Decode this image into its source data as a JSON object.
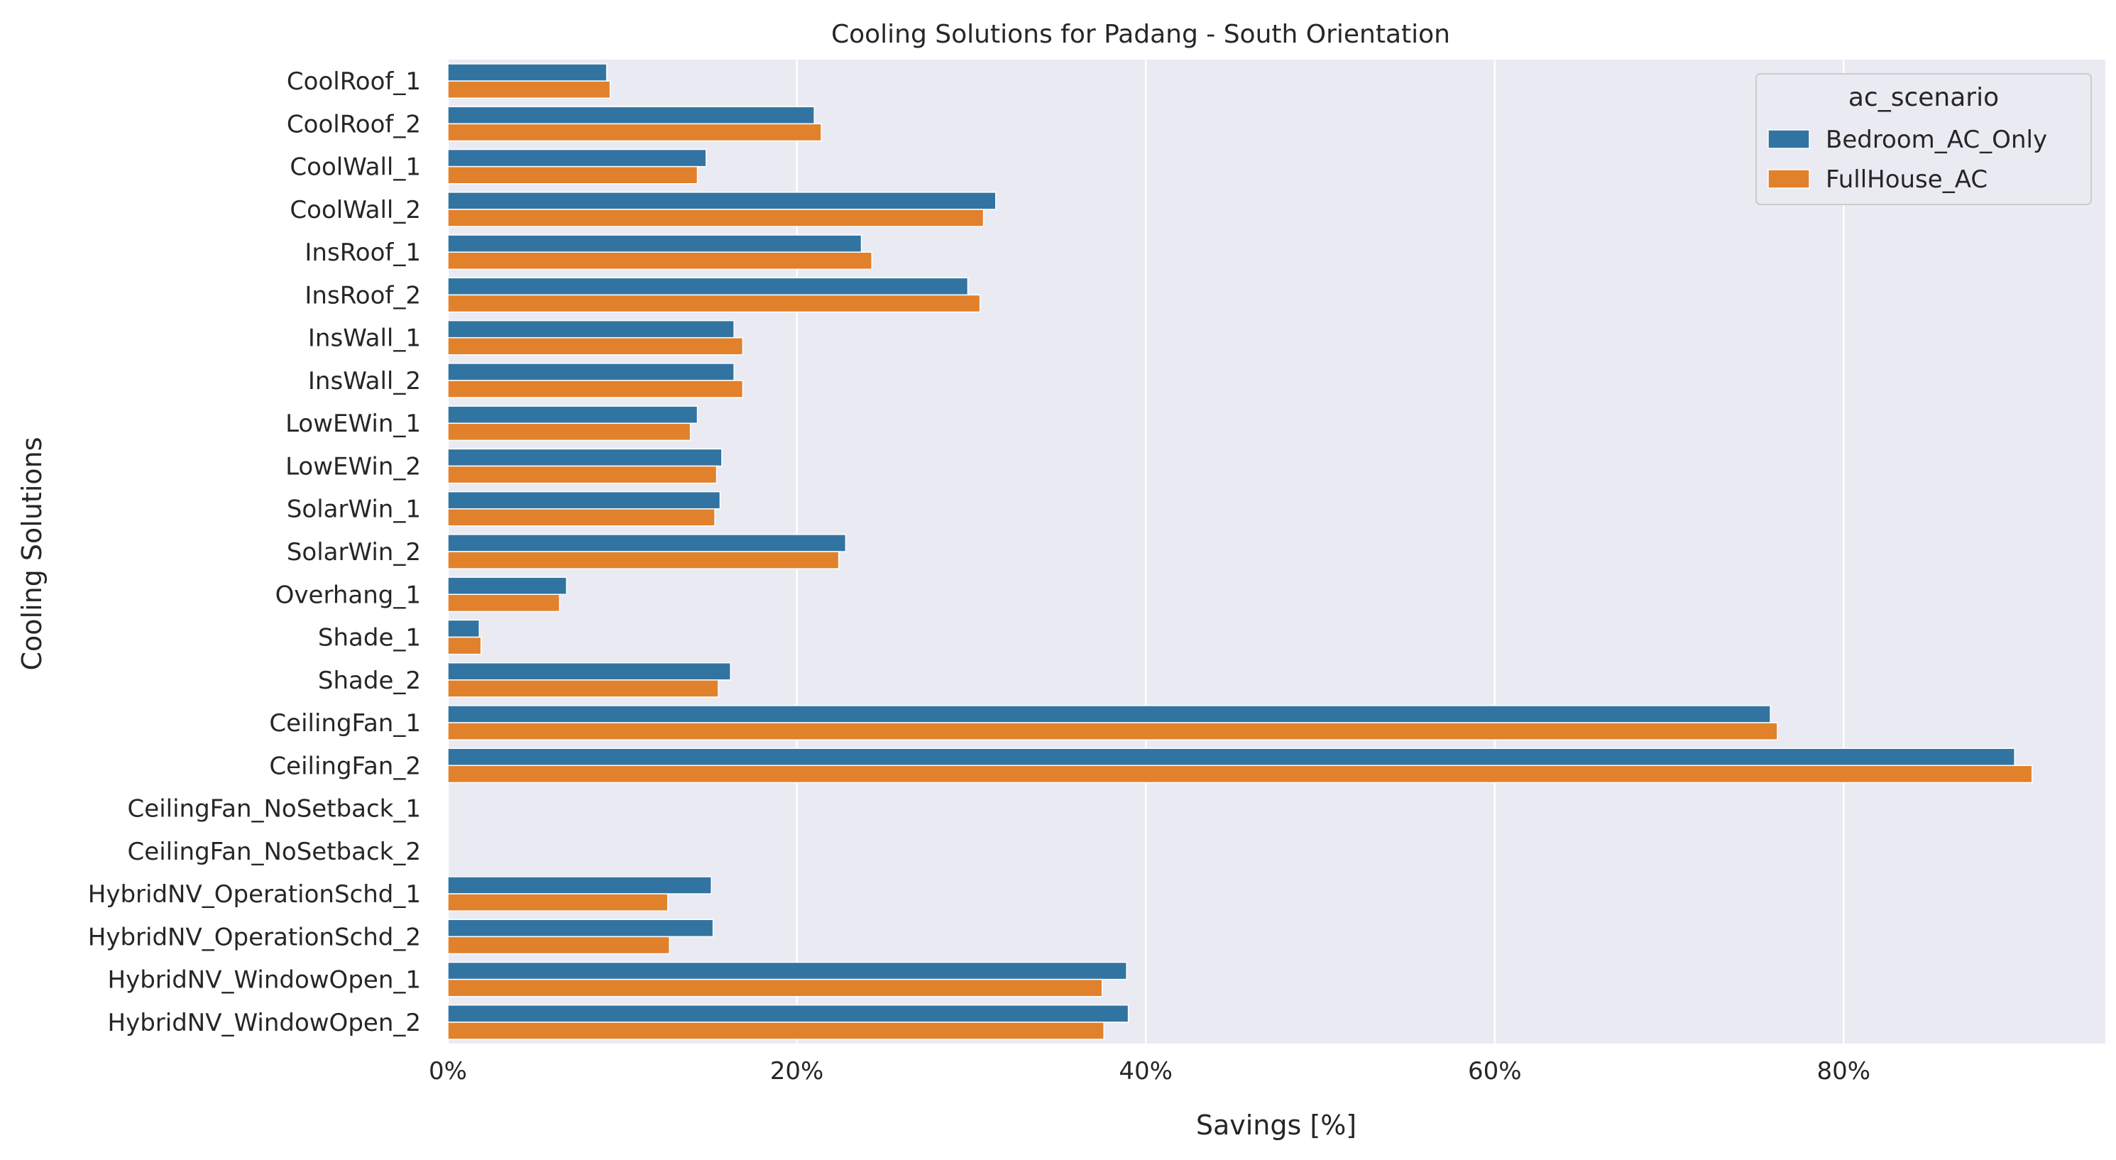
{
  "chart_data": {
    "type": "bar",
    "orientation": "horizontal",
    "title": "Cooling Solutions for Padang - South Orientation",
    "xlabel": "Savings [%]",
    "ylabel": "Cooling Solutions",
    "xlim": [
      0,
      95
    ],
    "xticks": [
      0,
      20,
      40,
      60,
      80
    ],
    "xtick_labels": [
      "0%",
      "20%",
      "40%",
      "60%",
      "80%"
    ],
    "grid": true,
    "legend": {
      "title": "ac_scenario",
      "placement": "top-right"
    },
    "categories": [
      "CoolRoof_1",
      "CoolRoof_2",
      "CoolWall_1",
      "CoolWall_2",
      "InsRoof_1",
      "InsRoof_2",
      "InsWall_1",
      "InsWall_2",
      "LowEWin_1",
      "LowEWin_2",
      "SolarWin_1",
      "SolarWin_2",
      "Overhang_1",
      "Shade_1",
      "Shade_2",
      "CeilingFan_1",
      "CeilingFan_2",
      "CeilingFan_NoSetback_1",
      "CeilingFan_NoSetback_2",
      "HybridNV_OperationSchd_1",
      "HybridNV_OperationSchd_2",
      "HybridNV_WindowOpen_1",
      "HybridNV_WindowOpen_2"
    ],
    "series": [
      {
        "name": "Bedroom_AC_Only",
        "color": "#3274a1",
        "values": [
          9.1,
          21.0,
          14.8,
          31.4,
          23.7,
          29.8,
          16.4,
          16.4,
          14.3,
          15.7,
          15.6,
          22.8,
          6.8,
          1.8,
          16.2,
          75.8,
          89.8,
          null,
          null,
          15.1,
          15.2,
          38.9,
          39.0
        ]
      },
      {
        "name": "FullHouse_AC",
        "color": "#e1812c",
        "values": [
          9.3,
          21.4,
          14.3,
          30.7,
          24.3,
          30.5,
          16.9,
          16.9,
          13.9,
          15.4,
          15.3,
          22.4,
          6.4,
          1.9,
          15.5,
          76.2,
          90.8,
          null,
          null,
          12.6,
          12.7,
          37.5,
          37.6
        ]
      }
    ]
  },
  "style": {
    "plot_background": "#eaeaf2",
    "grid_color": "#ffffff",
    "bar_edge_color": "#ffffff",
    "text_color": "#262626"
  }
}
